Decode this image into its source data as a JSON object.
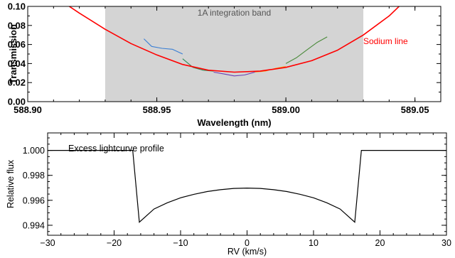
{
  "chart_data": [
    {
      "type": "line",
      "xlabel": "Wavelength (nm)",
      "ylabel": "Transmission",
      "xlim": [
        588.9,
        589.06
      ],
      "ylim": [
        0.0,
        0.1
      ],
      "xticks": [
        588.9,
        588.95,
        589.0,
        589.05
      ],
      "xtick_labels": [
        "588.90",
        "588.95",
        "589.00",
        "589.05"
      ],
      "yticks": [
        0.0,
        0.02,
        0.04,
        0.06,
        0.08,
        0.1
      ],
      "ytick_labels": [
        "0.00",
        "0.02",
        "0.04",
        "0.06",
        "0.08",
        "0.10"
      ],
      "band": {
        "x_start": 588.93,
        "x_end": 589.03,
        "label": "1A integration band",
        "color": "#d4d4d4"
      },
      "annotation": {
        "text": "Sodium line",
        "color": "#ff0000"
      },
      "series": [
        {
          "color": "#ff0000",
          "x": [
            588.915,
            588.92,
            588.93,
            588.94,
            588.95,
            588.96,
            588.97,
            588.98,
            588.99,
            589.0,
            589.01,
            589.02,
            589.03,
            589.04,
            589.045
          ],
          "y": [
            0.102,
            0.093,
            0.076,
            0.061,
            0.049,
            0.039,
            0.033,
            0.031,
            0.032,
            0.036,
            0.043,
            0.054,
            0.07,
            0.09,
            0.103
          ]
        },
        {
          "color": "#3a7fd5",
          "x": [
            588.945,
            588.948,
            588.952,
            588.956,
            588.96
          ],
          "y": [
            0.066,
            0.058,
            0.056,
            0.055,
            0.05
          ]
        },
        {
          "color": "#2e8b57",
          "x": [
            588.96,
            588.964,
            588.968,
            588.972
          ],
          "y": [
            0.045,
            0.036,
            0.033,
            0.032
          ]
        },
        {
          "color": "#6a3fb5",
          "x": [
            588.972,
            588.976,
            588.98,
            588.984,
            588.988
          ],
          "y": [
            0.031,
            0.029,
            0.027,
            0.028,
            0.031
          ]
        },
        {
          "color": "#f0a030",
          "x": [
            588.988,
            588.992,
            588.996,
            589.0
          ],
          "y": [
            0.031,
            0.032,
            0.035,
            0.037
          ]
        },
        {
          "color": "#4a8a3a",
          "x": [
            589.0,
            589.004,
            589.008,
            589.012,
            589.016
          ],
          "y": [
            0.04,
            0.046,
            0.054,
            0.062,
            0.068
          ]
        }
      ]
    },
    {
      "type": "line",
      "xlabel": "RV (km/s)",
      "ylabel": "Relative flux",
      "xlim": [
        -30,
        30
      ],
      "ylim": [
        0.9932,
        1.0014
      ],
      "xticks": [
        -30,
        -20,
        -10,
        0,
        10,
        20,
        30
      ],
      "xtick_labels": [
        "−30",
        "−20",
        "−10",
        "0",
        "10",
        "20",
        "30"
      ],
      "yticks": [
        0.994,
        0.996,
        0.998,
        1.0
      ],
      "ytick_labels": [
        "0.994",
        "0.996",
        "0.998",
        "1.000"
      ],
      "legend_text": "Excess lightcurve profile",
      "series": [
        {
          "color": "#000000",
          "x": [
            -30,
            -17.2,
            -16.2,
            -14,
            -12,
            -10,
            -8,
            -6,
            -4,
            -2,
            0,
            2,
            4,
            6,
            8,
            10,
            12,
            14,
            16.2,
            17.2,
            30
          ],
          "y": [
            1.0,
            1.0,
            0.99425,
            0.9953,
            0.9958,
            0.9962,
            0.99648,
            0.9967,
            0.99685,
            0.99695,
            0.99698,
            0.99695,
            0.99685,
            0.9967,
            0.99648,
            0.9962,
            0.9958,
            0.9953,
            0.99425,
            1.0,
            1.0
          ]
        }
      ]
    }
  ]
}
